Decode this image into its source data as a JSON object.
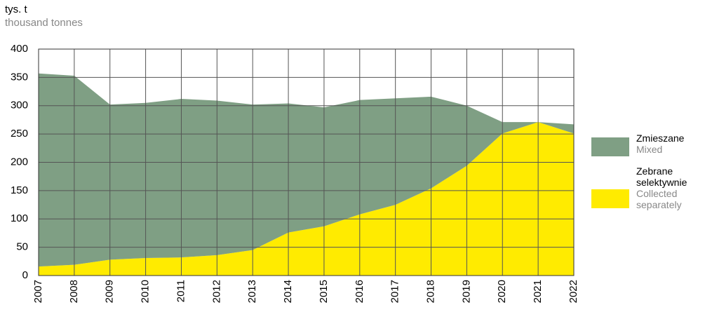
{
  "chart_data": {
    "type": "stacked_area",
    "y_label": "tys. t",
    "y_label_en": "thousand tonnes",
    "categories": [
      "2007",
      "2008",
      "2009",
      "2010",
      "2011",
      "2012",
      "2013",
      "2014",
      "2015",
      "2016",
      "2017",
      "2018",
      "2019",
      "2020",
      "2021",
      "2022"
    ],
    "series": [
      {
        "name": "Zmieszane",
        "name_en": "Mixed",
        "color": "#7f9f84",
        "values": [
          341,
          334,
          274,
          274,
          280,
          273,
          257,
          228,
          210,
          202,
          188,
          162,
          106,
          20,
          0,
          16
        ]
      },
      {
        "name": "Zebrane selektywnie",
        "name_en": "Collected separately",
        "color": "#ffeb00",
        "values": [
          16,
          19,
          28,
          31,
          32,
          36,
          45,
          76,
          87,
          108,
          125,
          154,
          194,
          251,
          271,
          251
        ]
      }
    ],
    "ylim": [
      0,
      400
    ],
    "yticks": [
      0,
      50,
      100,
      150,
      200,
      250,
      300,
      350,
      400
    ],
    "grid": true
  }
}
